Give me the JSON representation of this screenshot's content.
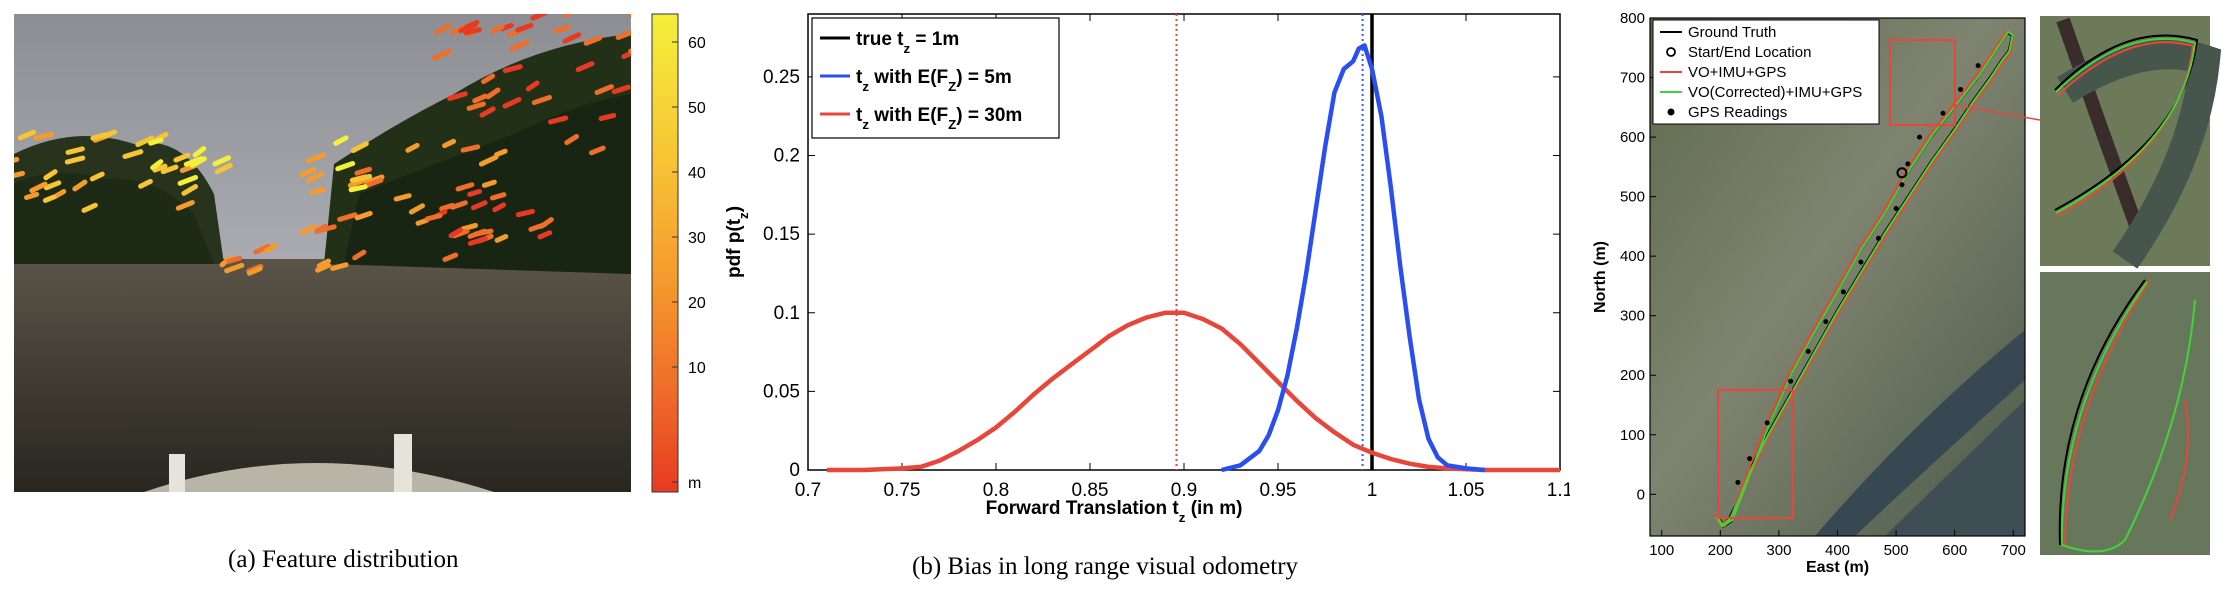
{
  "captions": {
    "a": "(a) Feature distribution",
    "b": "(b) Bias in long range visual odometry"
  },
  "colorbar": {
    "ticks": [
      "60",
      "50",
      "40",
      "30",
      "20",
      "10",
      "m"
    ],
    "colors": [
      "#f4ef3a",
      "#f7c534",
      "#f59b2e",
      "#ef6e2a",
      "#e83a22"
    ]
  },
  "chart_data": [
    {
      "type": "line",
      "xlabel": "Forward Translation t_z (in m)",
      "xlabel_main": "Forward Translation t",
      "xlabel_sub": "z",
      "xlabel_tail": " (in m)",
      "ylabel": "pdf p(t_z)",
      "ylabel_main": "pdf p(t",
      "ylabel_sub": "z",
      "ylabel_tail": ")",
      "xlim": [
        0.7,
        1.1
      ],
      "ylim": [
        0,
        0.29
      ],
      "xticks": [
        "0.7",
        "0.75",
        "0.8",
        "0.85",
        "0.9",
        "0.95",
        "1",
        "1.05",
        "1.1"
      ],
      "yticks": [
        "0",
        "0.05",
        "0.1",
        "0.15",
        "0.2",
        "0.25"
      ],
      "legend": [
        {
          "main": "true t",
          "sub": "z",
          "tail": " = 1m",
          "color": "#000000"
        },
        {
          "main": "t",
          "sub": "z",
          "tail": " with E(F",
          "sub2": "Z",
          "tail2": ") = 5m",
          "color": "#2a4ff0"
        },
        {
          "main": "t",
          "sub": "z",
          "tail": " with E(F",
          "sub2": "Z",
          "tail2": ") = 30m",
          "color": "#e8463a"
        }
      ],
      "series": [
        {
          "color": "#e8463a",
          "x": [
            0.71,
            0.73,
            0.75,
            0.76,
            0.77,
            0.78,
            0.79,
            0.8,
            0.81,
            0.82,
            0.83,
            0.84,
            0.85,
            0.86,
            0.87,
            0.88,
            0.89,
            0.895,
            0.9,
            0.91,
            0.92,
            0.93,
            0.94,
            0.95,
            0.96,
            0.97,
            0.98,
            0.99,
            1.0,
            1.01,
            1.02,
            1.03,
            1.04,
            1.06,
            1.08,
            1.1
          ],
          "y": [
            0.0,
            0.0,
            0.001,
            0.002,
            0.006,
            0.012,
            0.019,
            0.027,
            0.037,
            0.048,
            0.058,
            0.067,
            0.076,
            0.085,
            0.092,
            0.097,
            0.1,
            0.1,
            0.1,
            0.096,
            0.09,
            0.08,
            0.068,
            0.056,
            0.044,
            0.033,
            0.024,
            0.016,
            0.011,
            0.007,
            0.004,
            0.002,
            0.001,
            0.0,
            0.0,
            0.0
          ]
        },
        {
          "color": "#2a4ff0",
          "x": [
            0.92,
            0.93,
            0.94,
            0.945,
            0.95,
            0.955,
            0.96,
            0.965,
            0.97,
            0.975,
            0.98,
            0.985,
            0.99,
            0.993,
            0.996,
            1.0,
            1.005,
            1.01,
            1.015,
            1.02,
            1.025,
            1.03,
            1.035,
            1.04,
            1.05,
            1.06
          ],
          "y": [
            0.0,
            0.003,
            0.012,
            0.022,
            0.038,
            0.06,
            0.09,
            0.125,
            0.165,
            0.205,
            0.24,
            0.255,
            0.26,
            0.268,
            0.27,
            0.255,
            0.225,
            0.18,
            0.13,
            0.085,
            0.045,
            0.02,
            0.008,
            0.003,
            0.001,
            0.0
          ]
        }
      ],
      "vlines": [
        {
          "x": 1.0,
          "color": "#000000",
          "style": "solid"
        },
        {
          "x": 0.995,
          "color": "#3a5cf0",
          "style": "dotted"
        },
        {
          "x": 0.896,
          "color": "#e8463a",
          "style": "dotted"
        }
      ]
    },
    {
      "type": "line",
      "xlabel": "East (m)",
      "ylabel": "North (m)",
      "xlim": [
        80,
        720
      ],
      "ylim": [
        -70,
        800
      ],
      "xticks": [
        "100",
        "200",
        "300",
        "400",
        "500",
        "600",
        "700"
      ],
      "yticks": [
        "0",
        "100",
        "200",
        "300",
        "400",
        "500",
        "600",
        "700",
        "800"
      ],
      "legend": [
        {
          "label": "Ground Truth",
          "color": "#000000",
          "marker": "line"
        },
        {
          "label": "Start/End Location",
          "color": "#000000",
          "marker": "circle"
        },
        {
          "label": "VO+IMU+GPS",
          "color": "#e8463a",
          "marker": "line"
        },
        {
          "label": "VO(Corrected)+IMU+GPS",
          "color": "#44d23a",
          "marker": "line"
        },
        {
          "label": "GPS Readings",
          "color": "#000000",
          "marker": "dot"
        }
      ],
      "series": [
        {
          "name": "Ground Truth",
          "color": "#000000",
          "x": [
            195,
            205,
            220,
            245,
            280,
            320,
            360,
            400,
            440,
            480,
            520,
            560,
            600,
            640,
            670,
            690,
            698,
            692,
            680,
            660,
            630,
            600,
            560,
            520,
            480,
            440,
            400,
            360,
            320,
            280,
            250,
            230,
            215,
            205,
            197
          ],
          "y": [
            -40,
            -55,
            -45,
            20,
            110,
            200,
            270,
            340,
            410,
            470,
            540,
            600,
            650,
            700,
            745,
            775,
            770,
            745,
            730,
            700,
            660,
            615,
            560,
            500,
            440,
            375,
            310,
            240,
            170,
            100,
            40,
            -10,
            -40,
            -50,
            -40
          ]
        },
        {
          "name": "VO+IMU+GPS",
          "color": "#e8463a",
          "x": [
            190,
            200,
            218,
            242,
            277,
            318,
            358,
            398,
            438,
            478,
            518,
            558,
            598,
            638,
            668,
            688,
            700,
            695,
            682,
            662,
            632,
            602,
            562,
            522,
            482,
            442,
            402,
            362,
            322,
            282,
            252,
            232,
            217,
            206,
            192
          ],
          "y": [
            -35,
            -52,
            -40,
            25,
            115,
            205,
            275,
            345,
            415,
            475,
            545,
            605,
            655,
            705,
            748,
            778,
            772,
            740,
            725,
            695,
            655,
            610,
            555,
            495,
            435,
            370,
            305,
            235,
            165,
            95,
            35,
            -15,
            -44,
            -54,
            -35
          ]
        },
        {
          "name": "VO(Corrected)+IMU+GPS",
          "color": "#44d23a",
          "x": [
            193,
            203,
            221,
            246,
            281,
            321,
            361,
            401,
            441,
            481,
            521,
            561,
            601,
            641,
            671,
            691,
            699,
            693,
            681,
            661,
            631,
            601,
            561,
            521,
            481,
            441,
            401,
            361,
            321,
            281,
            251,
            231,
            216,
            204,
            195
          ],
          "y": [
            -38,
            -54,
            -43,
            22,
            112,
            202,
            272,
            342,
            412,
            472,
            542,
            602,
            652,
            702,
            747,
            777,
            771,
            744,
            729,
            699,
            659,
            614,
            559,
            499,
            439,
            374,
            309,
            239,
            169,
            99,
            39,
            -12,
            -42,
            -52,
            -38
          ]
        }
      ],
      "start_end": {
        "x": 510,
        "y": 540
      },
      "gps_points": {
        "x": [
          230,
          250,
          280,
          320,
          350,
          380,
          410,
          440,
          470,
          500,
          510,
          520,
          540,
          580,
          610,
          640
        ],
        "y": [
          20,
          60,
          120,
          190,
          240,
          290,
          340,
          390,
          430,
          480,
          520,
          555,
          600,
          640,
          680,
          720
        ]
      }
    }
  ]
}
